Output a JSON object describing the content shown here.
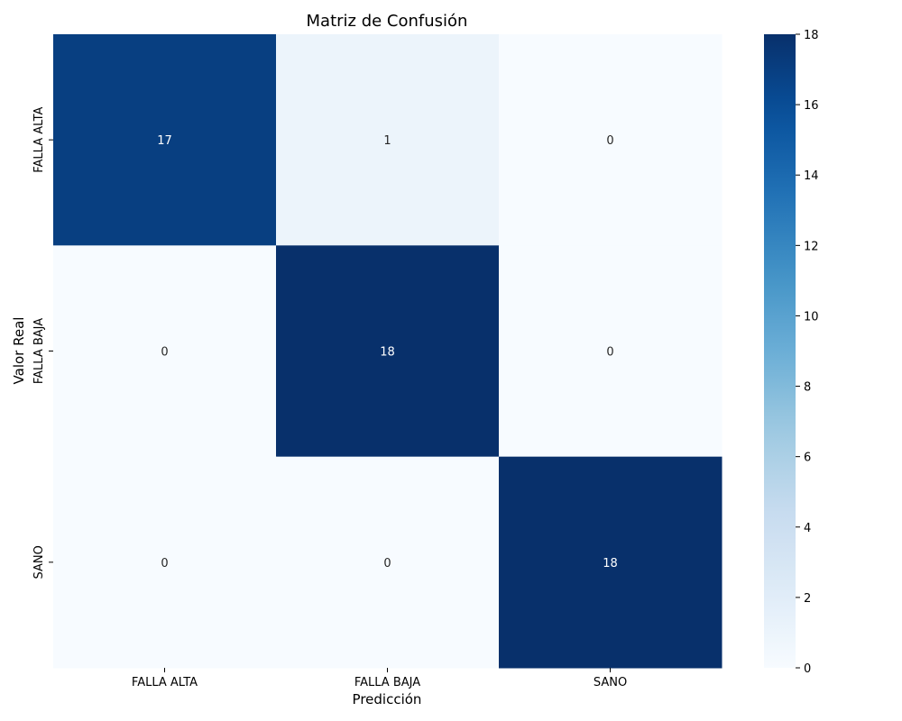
{
  "chart_data": {
    "type": "heatmap",
    "title": "Matriz de Confusión",
    "xlabel": "Predicción",
    "ylabel": "Valor Real",
    "x_categories": [
      "FALLA ALTA",
      "FALLA BAJA",
      "SANO"
    ],
    "y_categories": [
      "FALLA ALTA",
      "FALLA BAJA",
      "SANO"
    ],
    "values": [
      [
        17,
        1,
        0
      ],
      [
        0,
        18,
        0
      ],
      [
        0,
        0,
        18
      ]
    ],
    "colormap": "Blues",
    "colorbar": {
      "range": [
        0,
        18
      ],
      "ticks": [
        0,
        2,
        4,
        6,
        8,
        10,
        12,
        14,
        16,
        18
      ]
    },
    "grid": false
  }
}
